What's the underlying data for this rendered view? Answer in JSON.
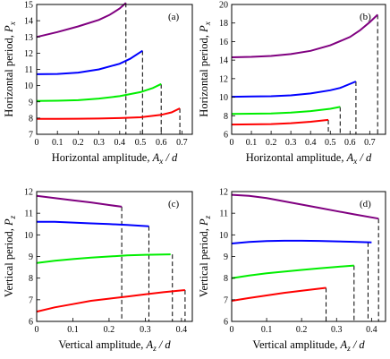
{
  "chart_data": [
    {
      "type": "line",
      "panel": "(a)",
      "xlabel": "Horizontal amplitude,",
      "xlabel_sym": "A",
      "xlabel_sub": "x",
      "xlabel_tail": " / d",
      "ylabel": "Horizontal period,",
      "ylabel_sym": "P",
      "ylabel_sub": "x",
      "xlim": [
        0,
        0.75
      ],
      "ylim": [
        7,
        15
      ],
      "xticks": [
        0,
        0.1,
        0.2,
        0.3,
        0.4,
        0.5,
        0.6,
        0.7
      ],
      "yticks": [
        7,
        8,
        9,
        10,
        11,
        12,
        13,
        14,
        15
      ],
      "series": [
        {
          "color": "#800080",
          "x": [
            0,
            0.1,
            0.2,
            0.3,
            0.35,
            0.4,
            0.43
          ],
          "y": [
            13.0,
            13.3,
            13.65,
            14.05,
            14.35,
            14.75,
            15.1
          ]
        },
        {
          "color": "#0000ff",
          "x": [
            0,
            0.1,
            0.2,
            0.3,
            0.4,
            0.45,
            0.51
          ],
          "y": [
            10.7,
            10.72,
            10.8,
            11.0,
            11.35,
            11.65,
            12.15
          ]
        },
        {
          "color": "#00ee00",
          "x": [
            0,
            0.1,
            0.2,
            0.3,
            0.4,
            0.5,
            0.56,
            0.6
          ],
          "y": [
            9.05,
            9.07,
            9.1,
            9.2,
            9.35,
            9.6,
            9.85,
            10.1
          ]
        },
        {
          "color": "#ff0000",
          "x": [
            0,
            0.1,
            0.2,
            0.3,
            0.4,
            0.5,
            0.6,
            0.65,
            0.69
          ],
          "y": [
            7.95,
            7.95,
            7.96,
            7.97,
            8.0,
            8.05,
            8.2,
            8.35,
            8.6
          ]
        }
      ],
      "dropdowns_x": [
        0.43,
        0.51,
        0.6,
        0.69
      ]
    },
    {
      "type": "line",
      "panel": "(b)",
      "xlabel": "Horizontal amplitude,",
      "xlabel_sym": "A",
      "xlabel_sub": "x",
      "xlabel_tail": " / d",
      "ylabel": "Horizontal period,",
      "ylabel_sym": "P",
      "ylabel_sub": "x",
      "xlim": [
        0,
        0.78
      ],
      "ylim": [
        6,
        20
      ],
      "xticks": [
        0,
        0.1,
        0.2,
        0.3,
        0.4,
        0.5,
        0.6,
        0.7
      ],
      "yticks": [
        6,
        8,
        10,
        12,
        14,
        16,
        18,
        20
      ],
      "series": [
        {
          "color": "#800080",
          "x": [
            0,
            0.1,
            0.2,
            0.3,
            0.4,
            0.5,
            0.6,
            0.65,
            0.7,
            0.74
          ],
          "y": [
            14.3,
            14.35,
            14.45,
            14.65,
            15.0,
            15.6,
            16.5,
            17.2,
            18.1,
            18.9
          ]
        },
        {
          "color": "#0000ff",
          "x": [
            0,
            0.1,
            0.2,
            0.3,
            0.4,
            0.5,
            0.55,
            0.63
          ],
          "y": [
            10.05,
            10.07,
            10.1,
            10.2,
            10.4,
            10.75,
            11.0,
            11.7
          ]
        },
        {
          "color": "#00ee00",
          "x": [
            0,
            0.1,
            0.2,
            0.3,
            0.4,
            0.5,
            0.55
          ],
          "y": [
            8.2,
            8.22,
            8.25,
            8.35,
            8.5,
            8.75,
            8.95
          ]
        },
        {
          "color": "#ff0000",
          "x": [
            0,
            0.1,
            0.2,
            0.3,
            0.4,
            0.49
          ],
          "y": [
            7.05,
            7.07,
            7.1,
            7.2,
            7.35,
            7.55
          ]
        }
      ],
      "dropdowns_x": [
        0.49,
        0.55,
        0.63,
        0.74
      ]
    },
    {
      "type": "line",
      "panel": "(c)",
      "xlabel": "Vertical amplitude,",
      "xlabel_sym": "A",
      "xlabel_sub": "z",
      "xlabel_tail": " / d",
      "ylabel": "Vertical period,",
      "ylabel_sym": "P",
      "ylabel_sub": "z",
      "xlim": [
        0,
        0.43
      ],
      "ylim": [
        6,
        12
      ],
      "xticks": [
        0,
        0.1,
        0.2,
        0.3,
        0.4
      ],
      "yticks": [
        6,
        7,
        8,
        9,
        10,
        11,
        12
      ],
      "series": [
        {
          "color": "#800080",
          "x": [
            0,
            0.05,
            0.1,
            0.15,
            0.2,
            0.235
          ],
          "y": [
            11.8,
            11.7,
            11.6,
            11.5,
            11.38,
            11.3
          ]
        },
        {
          "color": "#0000ff",
          "x": [
            0,
            0.05,
            0.1,
            0.15,
            0.2,
            0.25,
            0.31
          ],
          "y": [
            10.6,
            10.6,
            10.57,
            10.53,
            10.5,
            10.46,
            10.4
          ]
        },
        {
          "color": "#00ee00",
          "x": [
            0,
            0.05,
            0.1,
            0.15,
            0.2,
            0.25,
            0.3,
            0.37
          ],
          "y": [
            8.7,
            8.8,
            8.88,
            8.95,
            9.0,
            9.05,
            9.08,
            9.1
          ]
        },
        {
          "color": "#ff0000",
          "x": [
            0,
            0.05,
            0.1,
            0.15,
            0.2,
            0.25,
            0.3,
            0.35,
            0.41
          ],
          "y": [
            6.45,
            6.65,
            6.8,
            6.95,
            7.05,
            7.15,
            7.25,
            7.35,
            7.45
          ]
        }
      ],
      "dropdowns_x": [
        0.235,
        0.31,
        0.375,
        0.41
      ]
    },
    {
      "type": "line",
      "panel": "(d)",
      "xlabel": "Vertical amplitude,",
      "xlabel_sym": "A",
      "xlabel_sub": "z",
      "xlabel_tail": " / d",
      "ylabel": "Vertical period,",
      "ylabel_sym": "P",
      "ylabel_sub": "z",
      "xlim": [
        0,
        0.44
      ],
      "ylim": [
        6,
        12
      ],
      "xticks": [
        0,
        0.1,
        0.2,
        0.3,
        0.4
      ],
      "yticks": [
        6,
        7,
        8,
        9,
        10,
        11,
        12
      ],
      "series": [
        {
          "color": "#800080",
          "x": [
            0,
            0.05,
            0.1,
            0.15,
            0.2,
            0.25,
            0.3,
            0.35,
            0.42
          ],
          "y": [
            11.85,
            11.8,
            11.7,
            11.55,
            11.4,
            11.25,
            11.1,
            10.95,
            10.75
          ]
        },
        {
          "color": "#0000ff",
          "x": [
            0,
            0.05,
            0.1,
            0.15,
            0.2,
            0.25,
            0.3,
            0.35,
            0.4
          ],
          "y": [
            9.6,
            9.67,
            9.71,
            9.73,
            9.73,
            9.72,
            9.7,
            9.68,
            9.65
          ]
        },
        {
          "color": "#00ee00",
          "x": [
            0,
            0.05,
            0.1,
            0.15,
            0.2,
            0.25,
            0.3,
            0.35
          ],
          "y": [
            8.0,
            8.12,
            8.22,
            8.3,
            8.38,
            8.45,
            8.52,
            8.58
          ]
        },
        {
          "color": "#ff0000",
          "x": [
            0,
            0.05,
            0.1,
            0.15,
            0.2,
            0.27
          ],
          "y": [
            6.95,
            7.08,
            7.2,
            7.32,
            7.42,
            7.55
          ]
        }
      ],
      "dropdowns_x": [
        0.27,
        0.35,
        0.39,
        0.42
      ]
    }
  ]
}
